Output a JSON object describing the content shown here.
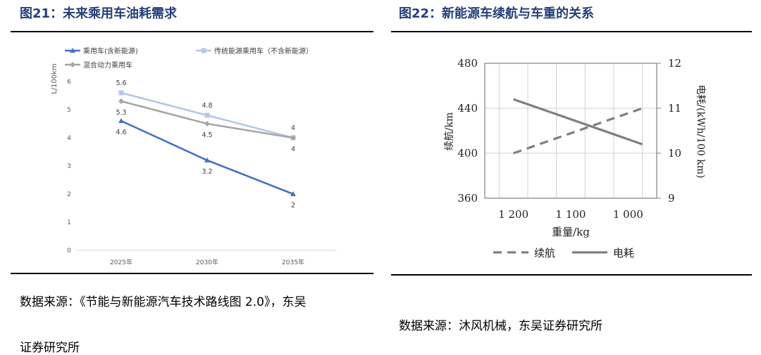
{
  "left": {
    "fig_title": "图21：未来乘用车油耗需求",
    "source_line1": "数据来源：《节能与新能源汽车技术路线图 2.0》，东吴",
    "source_line2": "证券研究所"
  },
  "right": {
    "fig_title": "图22：新能源车续航与车重的关系",
    "source": "数据来源：沐风机械，东吴证券研究所"
  },
  "colors": {
    "title": "#243f7a",
    "series_ice": "#4472c4",
    "series_nev": "#b4c7e7",
    "series_hybrid": "#a6a6a6",
    "range_line": "#7f7f7f",
    "power_line": "#7f7f7f",
    "grid": "#d0d0d0"
  },
  "chart_data": [
    {
      "type": "line",
      "ylabel": "L/100km",
      "categories": [
        "2025年",
        "2030年",
        "2035年"
      ],
      "ylim": [
        0,
        6
      ],
      "yticks": [
        "0",
        "1",
        "2",
        "3",
        "4",
        "5",
        "6"
      ],
      "grid": false,
      "legend_position": "top",
      "series": [
        {
          "name": "乘用车(含新能源)",
          "values": [
            4.6,
            3.2,
            2
          ],
          "labels": [
            "4.6",
            "3.2",
            "2"
          ]
        },
        {
          "name": "传统能源乘用车（不含新能源）",
          "values": [
            5.6,
            4.8,
            4
          ],
          "labels": [
            "5.6",
            "4.8",
            "4"
          ]
        },
        {
          "name": "混合动力乘用车",
          "values": [
            5.3,
            4.5,
            4
          ],
          "labels": [
            "5.3",
            "4.5",
            "4"
          ]
        }
      ]
    },
    {
      "type": "line",
      "xlabel": "重量/kg",
      "ylabel_left": "续航/km",
      "ylabel_right": "电耗/(kWh/100 km)",
      "xlim": [
        1250,
        950
      ],
      "xticks": [
        "1 200",
        "1 100",
        "1 000"
      ],
      "ylim_left": [
        360,
        480
      ],
      "yticks_left": [
        "360",
        "400",
        "440",
        "480"
      ],
      "ylim_right": [
        9,
        12
      ],
      "yticks_right": [
        "9",
        "10",
        "11",
        "12"
      ],
      "grid": true,
      "legend_position": "bottom",
      "series": [
        {
          "name": "续航",
          "axis": "left",
          "style": "dashed",
          "x": [
            1200,
            975
          ],
          "values": [
            400,
            440
          ]
        },
        {
          "name": "电耗",
          "axis": "right",
          "style": "solid",
          "x": [
            1200,
            975
          ],
          "values": [
            11.2,
            10.2
          ]
        }
      ]
    }
  ]
}
